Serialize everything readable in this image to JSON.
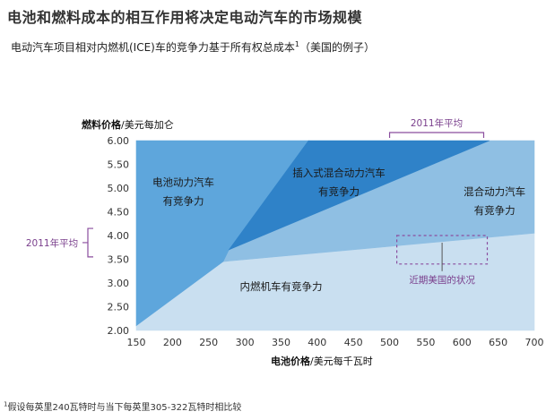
{
  "title": "电池和燃料成本的相互作用将决定电动汽车的市场规模",
  "subtitle": "电动汽车项目相对内燃机(ICE)车的竞争力基于所有权总成本",
  "subtitle_sup": "1",
  "subtitle_suffix": "（美国的例子）",
  "footnote_sup": "1",
  "footnote": "假设每英里240瓦特时与当下每英里305-322瓦特时相比较",
  "colors": {
    "ice": "#c9dff0",
    "hybrid": "#8fbfe3",
    "phev": "#2f82c8",
    "ev": "#5ea6dc",
    "annotation": "#8a4d9e"
  },
  "chart_data": {
    "type": "area",
    "x_label_bold": "电池价格",
    "x_label_rest": "/美元每千瓦时",
    "y_label_bold": "燃料价格",
    "y_label_rest": "/美元每加仑",
    "xlim": [
      150,
      700
    ],
    "ylim": [
      2.0,
      6.0
    ],
    "x_ticks": [
      "150",
      "200",
      "250",
      "300",
      "350",
      "400",
      "450",
      "500",
      "550",
      "600",
      "650",
      "700"
    ],
    "y_ticks": [
      "2.00",
      "2.50",
      "3.00",
      "3.50",
      "4.00",
      "4.50",
      "5.00",
      "5.50",
      "6.00"
    ],
    "regions": [
      {
        "name": "电池动力汽车有竞争力",
        "label_lines": [
          "电池动力汽车",
          "有竞争力"
        ],
        "label_at": [
          215,
          5.05
        ],
        "color_key": "ev",
        "polygon": [
          [
            150,
            2.1
          ],
          [
            150,
            6.0
          ],
          [
            388,
            6.0
          ],
          [
            278,
            3.7
          ],
          [
            270,
            3.45
          ]
        ]
      },
      {
        "name": "插入式混合动力汽车有竞争力",
        "label_lines": [
          "插入式混合动力汽车",
          "有竞争力"
        ],
        "label_at": [
          430,
          5.25
        ],
        "color_key": "phev",
        "polygon": [
          [
            388,
            6.0
          ],
          [
            638,
            6.0
          ],
          [
            278,
            3.7
          ]
        ]
      },
      {
        "name": "混合动力汽车有竞争力",
        "label_lines": [
          "混合动力汽车",
          "有竞争力"
        ],
        "label_at": [
          645,
          4.85
        ],
        "color_key": "hybrid",
        "polygon": [
          [
            638,
            6.0
          ],
          [
            700,
            6.0
          ],
          [
            700,
            4.05
          ],
          [
            270,
            3.45
          ],
          [
            278,
            3.7
          ]
        ]
      },
      {
        "name": "内燃机车有竞争力",
        "label_lines": [
          "内燃机车有竞争力"
        ],
        "label_at": [
          350,
          2.85
        ],
        "color_key": "ice",
        "polygon": [
          [
            150,
            2.0
          ],
          [
            700,
            2.0
          ],
          [
            700,
            4.05
          ],
          [
            270,
            3.45
          ],
          [
            150,
            2.1
          ]
        ]
      }
    ],
    "annotations": {
      "avg_2011_y": {
        "label": "2011年平均",
        "range": [
          3.55,
          4.15
        ]
      },
      "avg_2011_x": {
        "label": "2011年平均",
        "range": [
          500,
          630
        ]
      },
      "recent_us": {
        "label": "近期美国的状况",
        "x_range": [
          510,
          635
        ],
        "y_range": [
          3.4,
          4.0
        ]
      }
    }
  }
}
